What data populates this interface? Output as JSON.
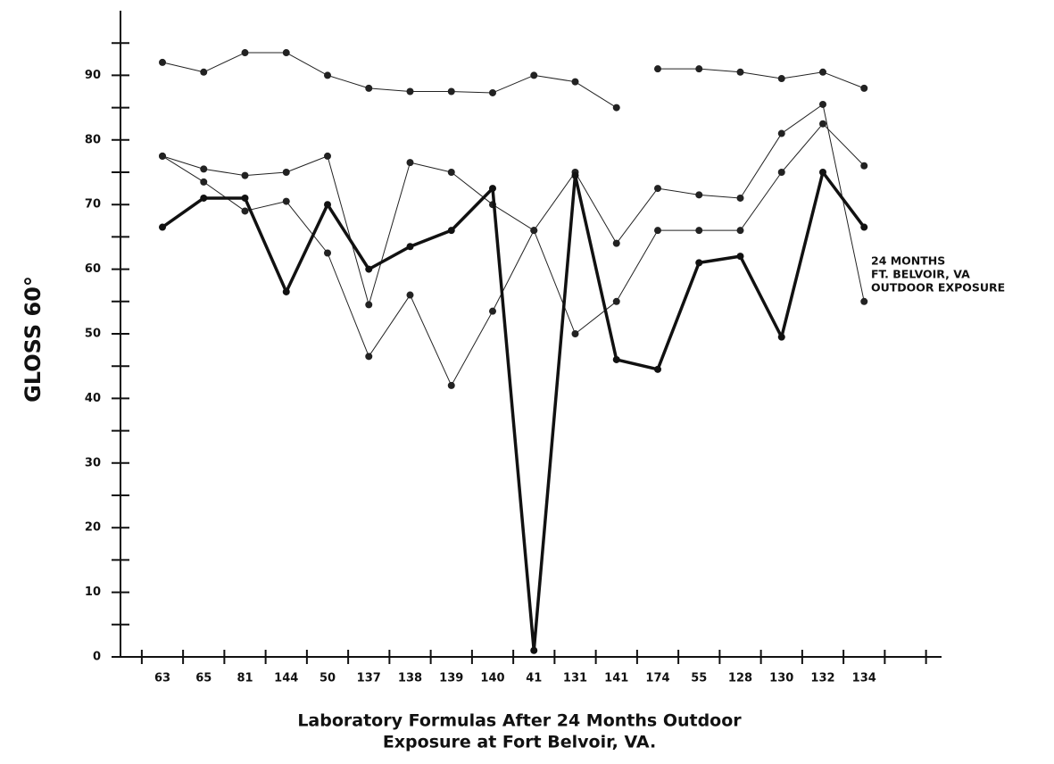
{
  "chart_data": {
    "type": "line",
    "y_label": "GLOSS 60°",
    "x_label": [
      "Laboratory Formulas After 24 Months Outdoor",
      "Exposure at Fort Belvoir, VA."
    ],
    "annotation": [
      "24 MONTHS",
      "FT. BELVOIR, VA",
      "OUTDOOR EXPOSURE"
    ],
    "categories": [
      "63",
      "65",
      "81",
      "144",
      "50",
      "137",
      "138",
      "139",
      "140",
      "41",
      "131",
      "141",
      "174",
      "55",
      "128",
      "130",
      "132",
      "134"
    ],
    "ylim": [
      0,
      100
    ],
    "yticks": [
      0,
      10,
      20,
      30,
      40,
      50,
      60,
      70,
      80,
      90
    ],
    "yminorticks": [
      5,
      15,
      25,
      35,
      45,
      55,
      65,
      75,
      85,
      95
    ],
    "series": [
      {
        "color": "#222",
        "line_width": 1,
        "values": [
          92,
          90.5,
          93.5,
          93.5,
          90,
          88,
          87.5,
          87.5,
          87.3,
          90,
          89,
          85,
          null,
          null,
          null,
          null,
          null,
          null
        ]
      },
      {
        "color": "#222",
        "line_width": 1,
        "values": [
          null,
          null,
          null,
          null,
          null,
          null,
          null,
          null,
          null,
          null,
          null,
          null,
          91,
          91,
          90.5,
          89.5,
          90.5,
          88
        ]
      },
      {
        "color": "#222",
        "line_width": 1,
        "values": [
          77.5,
          75.5,
          74.5,
          75,
          77.5,
          54.5,
          76.5,
          75,
          70,
          66,
          50,
          55,
          66,
          66,
          66,
          75,
          82.5,
          76
        ]
      },
      {
        "color": "#222",
        "line_width": 1,
        "values": [
          77.5,
          73.5,
          69,
          70.5,
          62.5,
          46.5,
          56,
          42,
          53.5,
          66,
          75,
          64,
          72.5,
          71.5,
          71,
          81,
          85.5,
          55
        ]
      },
      {
        "color": "#111",
        "line_width": 3.5,
        "values": [
          66.5,
          71,
          71,
          56.5,
          70,
          60,
          63.5,
          66,
          72.5,
          1,
          74.5,
          46,
          44.5,
          61,
          62,
          49.5,
          75,
          66.5
        ]
      }
    ]
  }
}
